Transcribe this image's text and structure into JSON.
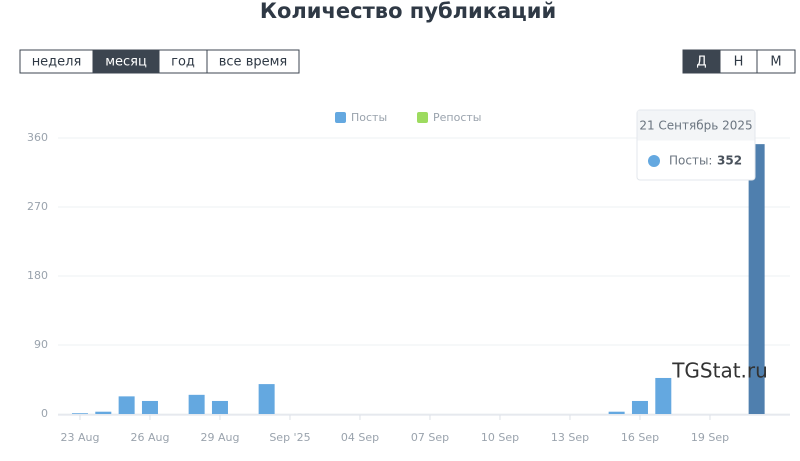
{
  "header": {
    "title": "Количество публикаций",
    "periods": [
      "неделя",
      "месяц",
      "год",
      "все время"
    ],
    "active_period": 1,
    "granularity": [
      "Д",
      "Н",
      "М"
    ],
    "active_granularity": 0
  },
  "watermark": "TGStat.ru",
  "tooltip": {
    "title": "21 Сентябрь 2025",
    "label": "Посты:"
  },
  "chart_data": {
    "type": "bar",
    "categories": [
      "23 Aug",
      null,
      null,
      "26 Aug",
      null,
      null,
      "29 Aug",
      null,
      null,
      "Sep '25",
      null,
      null,
      "04 Sep",
      null,
      null,
      "07 Sep",
      null,
      null,
      "10 Sep",
      null,
      null,
      "13 Sep",
      null,
      null,
      "16 Sep",
      null,
      null,
      "19 Sep",
      null,
      null
    ],
    "series": [
      {
        "name": "Посты",
        "color": "#64a8e0",
        "highlight_color": "#4f7fae",
        "values": [
          1,
          3,
          23,
          17,
          0,
          25,
          17,
          0,
          39,
          0,
          0,
          0,
          0,
          0,
          0,
          0,
          0,
          0,
          0,
          0,
          0,
          0,
          0,
          3,
          17,
          47,
          0,
          0,
          0,
          352
        ]
      },
      {
        "name": "Репосты",
        "color": "#9ddb5f",
        "values": [
          0,
          0,
          0,
          0,
          0,
          0,
          0,
          0,
          0,
          0,
          0,
          0,
          0,
          0,
          0,
          0,
          0,
          0,
          0,
          0,
          0,
          0,
          0,
          0,
          0,
          0,
          0,
          0,
          0,
          0
        ]
      }
    ],
    "ylim": [
      0,
      360
    ],
    "yticks": [
      0,
      90,
      180,
      270,
      360
    ],
    "grid": true
  }
}
